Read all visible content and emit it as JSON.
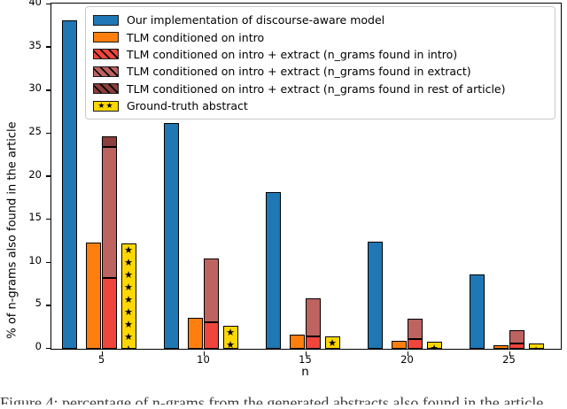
{
  "figure": {
    "ylabel": "% of n-grams also found in the article",
    "xlabel": "n",
    "yticks": [
      0,
      5,
      10,
      15,
      20,
      25,
      30,
      35,
      40
    ],
    "xticks": [
      "5",
      "10",
      "15",
      "20",
      "25"
    ]
  },
  "legend": {
    "items": [
      {
        "label": "Our implementation of discourse-aware model",
        "color": "#1f77b4",
        "hatch": "none",
        "icon": "solid-swatch-icon"
      },
      {
        "label": "TLM conditioned on intro",
        "color": "#ff7f0e",
        "hatch": "slash",
        "icon": "slash-hatch-swatch-icon"
      },
      {
        "label": "TLM conditioned on intro + extract (n_grams found in intro)",
        "color": "#f0453c",
        "hatch": "backslash",
        "icon": "backslash-hatch-swatch-icon"
      },
      {
        "label": "TLM conditioned on intro + extract (n_grams found in extract)",
        "color": "#bd6360",
        "hatch": "backslash",
        "icon": "backslash-hatch-swatch-icon"
      },
      {
        "label": "TLM conditioned on intro + extract (n_grams found in rest of article)",
        "color": "#8b3e3b",
        "hatch": "backslash-dense",
        "icon": "backslash-hatch-swatch-icon"
      },
      {
        "label": "Ground-truth abstract",
        "color": "#ffd700",
        "hatch": "stars",
        "star_glyph": "★★",
        "icon": "star-swatch-icon"
      }
    ]
  },
  "chart_data": {
    "type": "bar",
    "title": "",
    "xlabel": "n",
    "ylabel": "% of n-grams also found in the article",
    "categories": [
      5,
      10,
      15,
      20,
      25
    ],
    "ylim": [
      0,
      40
    ],
    "grid": false,
    "legend_position": "upper center",
    "bar_style": "grouped, with one stacked bar per group (intro + extract components) and hatched/star fill patterns",
    "series": [
      {
        "name": "Our implementation of discourse-aware model",
        "values": [
          38.2,
          26.2,
          18.2,
          12.4,
          8.6
        ]
      },
      {
        "name": "TLM conditioned on intro",
        "values": [
          12.3,
          3.6,
          1.6,
          0.9,
          0.4
        ]
      },
      {
        "name": "TLM conditioned on intro + extract (n_grams found in intro)",
        "stack": "intro_plus_extract",
        "values": [
          8.2,
          3.1,
          1.4,
          1.1,
          0.6
        ]
      },
      {
        "name": "TLM conditioned on intro + extract (n_grams found in extract)",
        "stack": "intro_plus_extract",
        "values": [
          15.2,
          7.4,
          4.4,
          2.4,
          1.5
        ]
      },
      {
        "name": "TLM conditioned on intro + extract (n_grams found in rest of article)",
        "stack": "intro_plus_extract",
        "values": [
          1.2,
          0,
          0,
          0,
          0
        ]
      },
      {
        "name": "Ground-truth abstract",
        "values": [
          12.2,
          2.7,
          1.4,
          0.8,
          0.6
        ]
      }
    ]
  },
  "caption_fragment": "Figure 4: percentage of n-grams from the generated abstracts also found in the article (clipped)"
}
